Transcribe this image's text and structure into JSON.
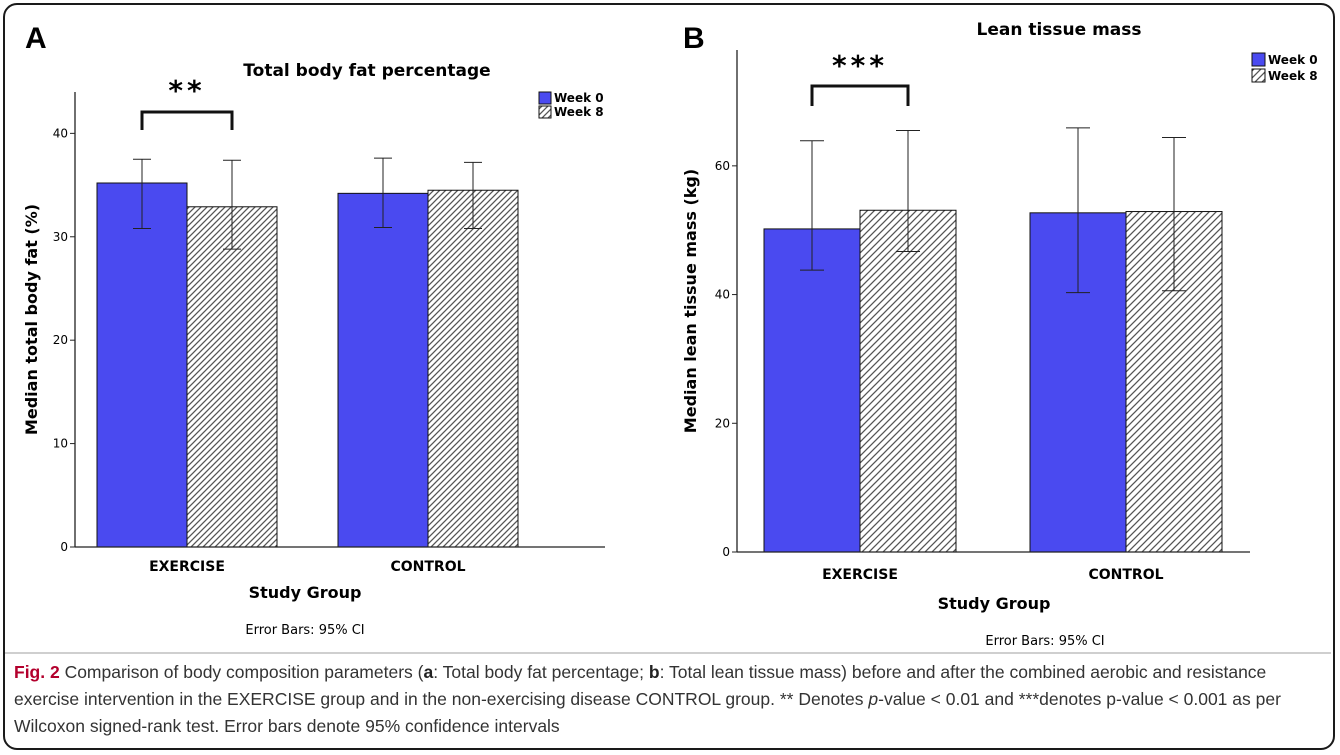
{
  "figure": {
    "caption": {
      "label": "Fig. 2",
      "intro": " Comparison of body composition parameters (",
      "a_key": "a",
      "a_text": ": Total body fat percentage; ",
      "b_key": "b",
      "b_text": ": Total lean tissue mass) before and after the combined aerobic and resistance exercise intervention in the EXERCISE group and in the non-exercising disease CONTROL group. ** Denotes ",
      "p_italic": "p",
      "rest": "-value < 0.01 and ***denotes p-value < 0.001 as per Wilcoxon signed-rank test. Error bars denote 95% confidence intervals"
    }
  },
  "colors": {
    "week0": "#4a4af0",
    "week8_hatch": "#555555",
    "frame": "#1a1a1a",
    "caption_label": "#b3002d"
  },
  "chart_data": [
    {
      "panel": "A",
      "type": "bar",
      "title": "Total body fat percentage",
      "xlabel": "Study Group",
      "ylabel": "Median total body fat (%)",
      "note": "Error Bars: 95% CI",
      "categories": [
        "EXERCISE",
        "CONTROL"
      ],
      "ylim": [
        0,
        44
      ],
      "yticks": [
        0,
        10,
        20,
        30,
        40
      ],
      "series": [
        {
          "name": "Week 0",
          "values": [
            35.2,
            34.2
          ],
          "ci_low": [
            30.8,
            30.9
          ],
          "ci_high": [
            37.5,
            37.6
          ]
        },
        {
          "name": "Week 8",
          "values": [
            32.9,
            34.5
          ],
          "ci_low": [
            28.8,
            30.8
          ],
          "ci_high": [
            37.4,
            37.2
          ]
        }
      ],
      "significance": {
        "category": "EXERCISE",
        "label": "**"
      },
      "legend": "top-right"
    },
    {
      "panel": "B",
      "type": "bar",
      "title": "Lean tissue mass",
      "xlabel": "Study Group",
      "ylabel": "Median lean tissue mass (kg)",
      "note": "Error Bars: 95% CI",
      "categories": [
        "EXERCISE",
        "CONTROL"
      ],
      "ylim": [
        0,
        78
      ],
      "yticks": [
        0,
        20,
        40,
        60
      ],
      "series": [
        {
          "name": "Week 0",
          "values": [
            50.2,
            52.7
          ],
          "ci_low": [
            43.8,
            40.3
          ],
          "ci_high": [
            63.9,
            65.9
          ]
        },
        {
          "name": "Week 8",
          "values": [
            53.1,
            52.9
          ],
          "ci_low": [
            46.7,
            40.6
          ],
          "ci_high": [
            65.5,
            64.4
          ]
        }
      ],
      "significance": {
        "category": "EXERCISE",
        "label": "***"
      },
      "legend": "top-right"
    }
  ]
}
